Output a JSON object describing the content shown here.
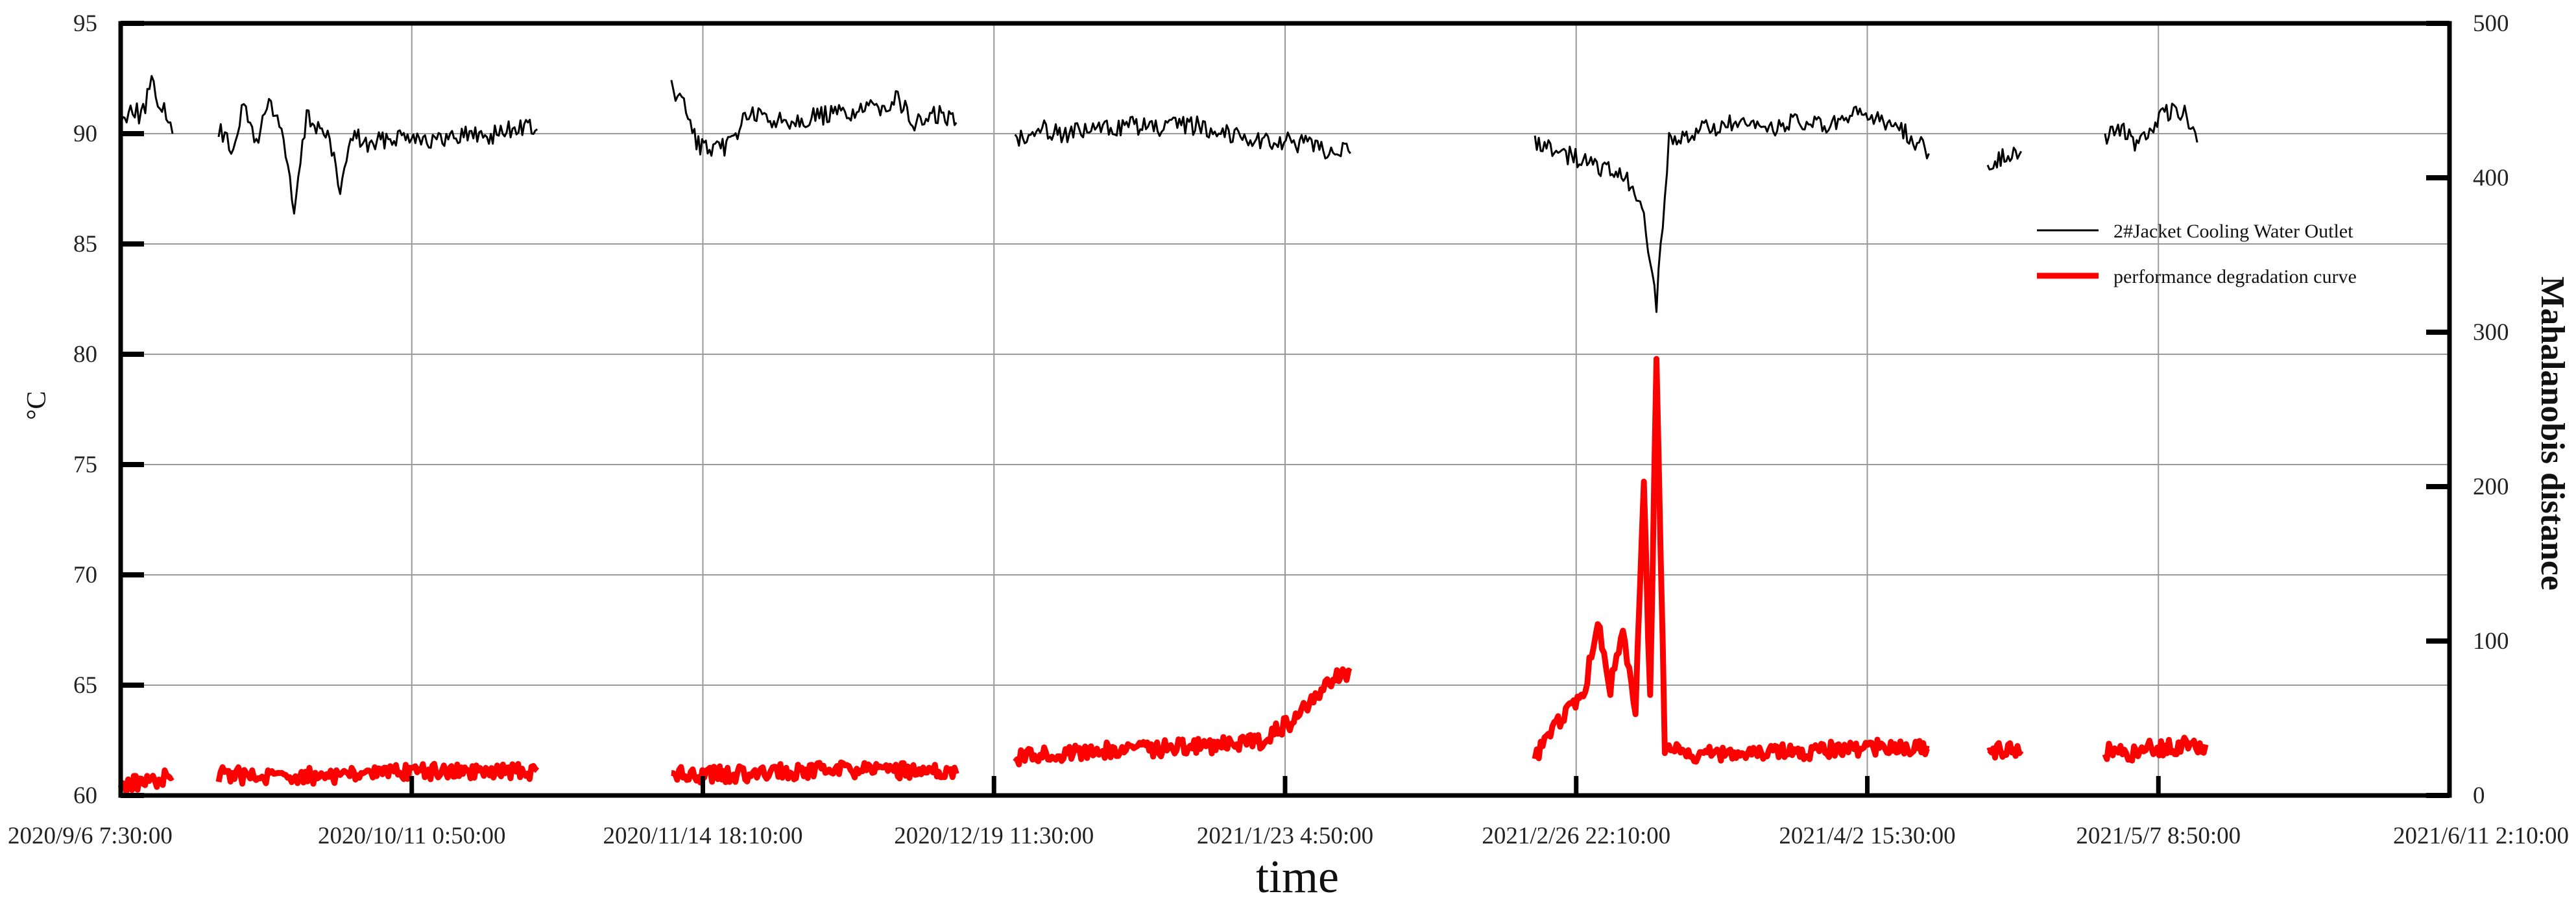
{
  "chart_data": {
    "type": "line",
    "xlabel": "time",
    "ylabel_left": "°C",
    "ylabel_right": "Mahalanobis distance",
    "x_tick_labels": [
      "2020/9/6  7:30:00",
      "2020/10/11  0:50:00",
      "2020/11/14  18:10:00",
      "2020/12/19  11:30:00",
      "2021/1/23  4:50:00",
      "2021/2/26  22:10:00",
      "2021/4/2  15:30:00",
      "2021/5/7  8:50:00",
      "2021/6/11  2:10:00"
    ],
    "xlim": [
      "2020/9/6  7:30:00",
      "2021/6/11  2:10:00"
    ],
    "ylim_left": [
      60,
      95
    ],
    "yticks_left": [
      60,
      65,
      70,
      75,
      80,
      85,
      90,
      95
    ],
    "ylim_right": [
      0,
      500
    ],
    "yticks_right": [
      0,
      100,
      200,
      300,
      400,
      500
    ],
    "grid": true,
    "legend_position": "right",
    "series": [
      {
        "name": "2#Jacket Cooling Water Outlet",
        "axis": "left",
        "color": "#000000",
        "segments": [
          [
            [
              "2020/9/6 7:30",
              90.4
            ],
            [
              "2020/9/7 12:00",
              91.3
            ],
            [
              "2020/9/8 18:00",
              90.8
            ],
            [
              "2020/9/10 0:00",
              92.2
            ],
            [
              "2020/9/11 12:00",
              91.0
            ],
            [
              "2020/9/12 12:00",
              90.0
            ]
          ],
          [
            [
              "2020/9/18 0:00",
              90.2
            ],
            [
              "2020/9/19 12:00",
              89.3
            ],
            [
              "2020/9/21 0:00",
              91.2
            ],
            [
              "2020/9/22 12:00",
              89.6
            ],
            [
              "2020/9/24 0:00",
              91.5
            ],
            [
              "2020/9/25 12:00",
              90.3
            ],
            [
              "2020/9/27 0:00",
              86.4
            ],
            [
              "2020/9/28 12:00",
              90.8
            ],
            [
              "2020/10/1 0:00",
              89.9
            ],
            [
              "2020/10/2 12:00",
              87.5
            ],
            [
              "2020/10/4 0:00",
              90.0
            ],
            [
              "2020/10/6 0:00",
              89.4
            ],
            [
              "2020/10/8 0:00",
              89.8
            ],
            [
              "2020/10/11 0:00",
              90.0
            ],
            [
              "2020/10/14 0:00",
              89.6
            ],
            [
              "2020/10/17 0:00",
              90.0
            ],
            [
              "2020/10/20 0:00",
              89.9
            ],
            [
              "2020/10/24 0:00",
              90.3
            ],
            [
              "2020/10/26 0:00",
              90.2
            ]
          ],
          [
            [
              "2020/11/11 0:00",
              92.0
            ],
            [
              "2020/11/12 12:00",
              91.3
            ],
            [
              "2020/11/14 0:00",
              89.6
            ],
            [
              "2020/11/16 0:00",
              89.1
            ],
            [
              "2020/11/18 0:00",
              89.6
            ],
            [
              "2020/11/20 0:00",
              90.9
            ],
            [
              "2020/11/23 0:00",
              90.6
            ],
            [
              "2020/11/27 0:00",
              90.7
            ],
            [
              "2020/12/1 0:00",
              90.9
            ],
            [
              "2020/12/5 0:00",
              91.1
            ],
            [
              "2020/12/8 0:00",
              91.6
            ],
            [
              "2020/12/10 0:00",
              90.4
            ],
            [
              "2020/12/13 0:00",
              90.9
            ],
            [
              "2020/12/15 0:00",
              90.5
            ]
          ],
          [
            [
              "2020/12/22 0:00",
              89.8
            ],
            [
              "2020/12/25 0:00",
              90.3
            ],
            [
              "2020/12/28 0:00",
              90.0
            ],
            [
              "2021/1/1 0:00",
              90.2
            ],
            [
              "2021/1/5 0:00",
              90.4
            ],
            [
              "2021/1/8 0:00",
              90.2
            ],
            [
              "2021/1/12 0:00",
              90.4
            ],
            [
              "2021/1/16 0:00",
              90.1
            ],
            [
              "2021/1/20 0:00",
              89.7
            ],
            [
              "2021/1/24 0:00",
              89.6
            ],
            [
              "2021/1/28 0:00",
              89.3
            ],
            [
              "2021/1/31 0:00",
              89.1
            ]
          ],
          [
            [
              "2021/2/22 0:00",
              89.7
            ],
            [
              "2021/2/25 0:00",
              89.2
            ],
            [
              "2021/2/28 0:00",
              88.7
            ],
            [
              "2021/3/3 0:00",
              88.3
            ],
            [
              "2021/3/5 0:00",
              87.8
            ],
            [
              "2021/3/7 0:00",
              86.3
            ],
            [
              "2021/3/8 12:00",
              82.3
            ],
            [
              "2021/3/10 0:00",
              89.6
            ],
            [
              "2021/3/13 0:00",
              90.1
            ],
            [
              "2021/3/17 0:00",
              90.4
            ],
            [
              "2021/3/21 0:00",
              90.2
            ],
            [
              "2021/3/25 0:00",
              90.5
            ],
            [
              "2021/3/29 0:00",
              90.3
            ],
            [
              "2021/4/2 0:00",
              90.9
            ],
            [
              "2021/4/6 0:00",
              90.4
            ],
            [
              "2021/4/10 0:00",
              89.1
            ]
          ],
          [
            [
              "2021/4/17 0:00",
              88.7
            ],
            [
              "2021/4/19 0:00",
              89.0
            ],
            [
              "2021/4/21 0:00",
              89.2
            ]
          ],
          [
            [
              "2021/5/1 0:00",
              89.9
            ],
            [
              "2021/5/3 0:00",
              90.2
            ],
            [
              "2021/5/5 0:00",
              89.4
            ],
            [
              "2021/5/7 0:00",
              90.5
            ],
            [
              "2021/5/9 0:00",
              91.1
            ],
            [
              "2021/5/10 12:00",
              90.9
            ],
            [
              "2021/5/12 0:00",
              89.6
            ]
          ]
        ]
      },
      {
        "name": "performance degradation curve",
        "axis": "right",
        "color": "#ff0000",
        "segments": [
          [
            [
              "2020/9/6 7:30",
              7
            ],
            [
              "2020/9/9 0:00",
              9
            ],
            [
              "2020/9/12 12:00",
              12
            ]
          ],
          [
            [
              "2020/9/18 0:00",
              13
            ],
            [
              "2020/9/22 0:00",
              13
            ],
            [
              "2020/9/26 0:00",
              12
            ],
            [
              "2020/9/30 0:00",
              13
            ],
            [
              "2020/10/5 0:00",
              14
            ],
            [
              "2020/10/11 0:00",
              15
            ],
            [
              "2020/10/16 0:00",
              16
            ],
            [
              "2020/10/21 0:00",
              16
            ],
            [
              "2020/10/26 0:00",
              16
            ]
          ],
          [
            [
              "2020/11/11 0:00",
              13
            ],
            [
              "2020/11/17 0:00",
              14
            ],
            [
              "2020/11/24 0:00",
              15
            ],
            [
              "2020/12/1 0:00",
              16
            ],
            [
              "2020/12/8 0:00",
              16
            ],
            [
              "2020/12/15 0:00",
              14
            ]
          ],
          [
            [
              "2020/12/22 0:00",
              25
            ],
            [
              "2020/12/28 0:00",
              28
            ],
            [
              "2021/1/1 0:00",
              29
            ],
            [
              "2021/1/7 0:00",
              30
            ],
            [
              "2021/1/14 0:00",
              32
            ],
            [
              "2021/1/20 0:00",
              35
            ],
            [
              "2021/1/24 0:00",
              48
            ],
            [
              "2021/1/28 0:00",
              72
            ],
            [
              "2021/1/31 0:00",
              80
            ]
          ],
          [
            [
              "2021/2/22 0:00",
              25
            ],
            [
              "2021/2/25 0:00",
              48
            ],
            [
              "2021/2/28 0:00",
              70
            ],
            [
              "2021/3/1 12:00",
              115
            ],
            [
              "2021/3/3 0:00",
              70
            ],
            [
              "2021/3/4 12:00",
              108
            ],
            [
              "2021/3/6 0:00",
              55
            ],
            [
              "2021/3/7 0:00",
              200
            ],
            [
              "2021/3/7 18:00",
              60
            ],
            [
              "2021/3/8 12:00",
              285
            ],
            [
              "2021/3/9 12:00",
              30
            ],
            [
              "2021/3/13 0:00",
              26
            ],
            [
              "2021/3/18 0:00",
              27
            ],
            [
              "2021/3/24 0:00",
              28
            ],
            [
              "2021/3/30 0:00",
              30
            ],
            [
              "2021/4/5 0:00",
              31
            ],
            [
              "2021/4/10 0:00",
              30
            ]
          ],
          [
            [
              "2021/4/17 0:00",
              30
            ],
            [
              "2021/4/19 0:00",
              30
            ],
            [
              "2021/4/21 0:00",
              29
            ]
          ],
          [
            [
              "2021/5/1 0:00",
              29
            ],
            [
              "2021/5/4 0:00",
              27
            ],
            [
              "2021/5/7 0:00",
              31
            ],
            [
              "2021/5/10 0:00",
              32
            ],
            [
              "2021/5/13 0:00",
              33
            ]
          ]
        ]
      }
    ]
  },
  "legend": {
    "items": [
      {
        "label": "2#Jacket Cooling Water Outlet",
        "color": "#000000"
      },
      {
        "label": "performance degradation curve",
        "color": "#ff0000"
      }
    ]
  }
}
